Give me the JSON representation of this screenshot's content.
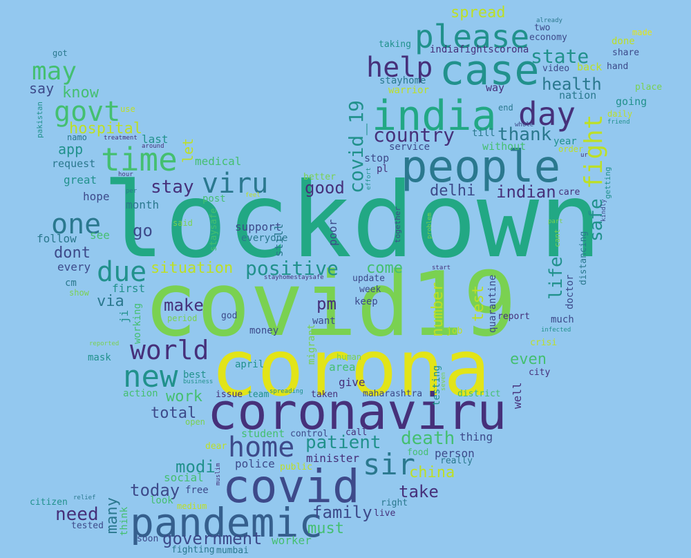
{
  "palette": {
    "background": "#93c8ef",
    "dark_purple": "#46307a",
    "indigo": "#3d4a8a",
    "slate_blue": "#355f8d",
    "steel": "#2a788e",
    "teal": "#21918c",
    "jade": "#22a884",
    "green": "#44bf70",
    "lime": "#7ad151",
    "light_lime": "#bddf26",
    "yellow": "#e2e418"
  },
  "words": [
    {
      "text": "lockdown",
      "color": "jade"
    },
    {
      "text": "covid19",
      "color": "lime"
    },
    {
      "text": "corona",
      "color": "yellow"
    },
    {
      "text": "coronaviru",
      "color": "dark_purple"
    },
    {
      "text": "pandemic",
      "color": "slate_blue"
    },
    {
      "text": "covid",
      "color": "indigo"
    },
    {
      "text": "people",
      "color": "steel"
    },
    {
      "text": "india",
      "color": "jade"
    },
    {
      "text": "case",
      "color": "teal"
    },
    {
      "text": "please",
      "color": "teal"
    },
    {
      "text": "home",
      "color": "indigo"
    },
    {
      "text": "new",
      "color": "teal"
    },
    {
      "text": "time",
      "color": "green"
    },
    {
      "text": "day",
      "color": "dark_purple"
    },
    {
      "text": "help",
      "color": "dark_purple"
    },
    {
      "text": "world",
      "color": "dark_purple"
    },
    {
      "text": "viru",
      "color": "steel"
    },
    {
      "text": "one",
      "color": "steel"
    },
    {
      "text": "sir",
      "color": "steel"
    },
    {
      "text": "due",
      "color": "teal"
    },
    {
      "text": "govt",
      "color": "green"
    },
    {
      "text": "may",
      "color": "green"
    },
    {
      "text": "fight",
      "color": "light_lime"
    },
    {
      "text": "country",
      "color": "dark_purple"
    },
    {
      "text": "covid_19",
      "color": "teal"
    },
    {
      "text": "positive",
      "color": "teal"
    },
    {
      "text": "stay",
      "color": "dark_purple"
    },
    {
      "text": "hospital",
      "color": "light_lime"
    },
    {
      "text": "state",
      "color": "teal"
    },
    {
      "text": "health",
      "color": "steel"
    },
    {
      "text": "thank",
      "color": "steel"
    },
    {
      "text": "patient",
      "color": "teal"
    },
    {
      "text": "good",
      "color": "dark_purple"
    },
    {
      "text": "delhi",
      "color": "indigo"
    },
    {
      "text": "indian",
      "color": "dark_purple"
    },
    {
      "text": "safe",
      "color": "teal"
    },
    {
      "text": "situation",
      "color": "light_lime"
    },
    {
      "text": "death",
      "color": "green"
    },
    {
      "text": "take",
      "color": "dark_purple"
    },
    {
      "text": "need",
      "color": "dark_purple"
    },
    {
      "text": "family",
      "color": "indigo"
    },
    {
      "text": "today",
      "color": "indigo"
    },
    {
      "text": "government",
      "color": "indigo"
    },
    {
      "text": "modi",
      "color": "teal"
    },
    {
      "text": "make",
      "color": "dark_purple"
    },
    {
      "text": "pm",
      "color": "dark_purple"
    },
    {
      "text": "life",
      "color": "teal"
    },
    {
      "text": "come",
      "color": "green"
    },
    {
      "text": "even",
      "color": "green"
    },
    {
      "text": "china",
      "color": "light_lime"
    },
    {
      "text": "total",
      "color": "indigo"
    },
    {
      "text": "work",
      "color": "green"
    },
    {
      "text": "number",
      "color": "light_lime"
    },
    {
      "text": "test",
      "color": "light_lime"
    },
    {
      "text": "spread",
      "color": "light_lime"
    },
    {
      "text": "go",
      "color": "indigo"
    },
    {
      "text": "dont",
      "color": "indigo"
    },
    {
      "text": "via",
      "color": "steel"
    },
    {
      "text": "must",
      "color": "green"
    },
    {
      "text": "many",
      "color": "steel"
    },
    {
      "text": "app",
      "color": "teal"
    },
    {
      "text": "know",
      "color": "green"
    },
    {
      "text": "say",
      "color": "indigo"
    },
    {
      "text": "let",
      "color": "light_lime"
    },
    {
      "text": "last",
      "color": "teal"
    },
    {
      "text": "medical",
      "color": "green"
    },
    {
      "text": "request",
      "color": "steel"
    },
    {
      "text": "great",
      "color": "teal"
    },
    {
      "text": "hope",
      "color": "indigo"
    },
    {
      "text": "month",
      "color": "steel"
    },
    {
      "text": "follow",
      "color": "steel"
    },
    {
      "text": "see",
      "color": "green"
    },
    {
      "text": "every",
      "color": "indigo"
    },
    {
      "text": "cm",
      "color": "steel"
    },
    {
      "text": "first",
      "color": "teal"
    },
    {
      "text": "show",
      "color": "lime"
    },
    {
      "text": "mask",
      "color": "teal"
    },
    {
      "text": "action",
      "color": "green"
    },
    {
      "text": "best",
      "color": "teal"
    },
    {
      "text": "support",
      "color": "indigo"
    },
    {
      "text": "everyone",
      "color": "steel"
    },
    {
      "text": "still",
      "color": "steel"
    },
    {
      "text": "poor",
      "color": "indigo"
    },
    {
      "text": "post",
      "color": "green"
    },
    {
      "text": "staysafe",
      "color": "green"
    },
    {
      "text": "said",
      "color": "lime"
    },
    {
      "text": "god",
      "color": "indigo"
    },
    {
      "text": "money",
      "color": "indigo"
    },
    {
      "text": "period",
      "color": "lime"
    },
    {
      "text": "working",
      "color": "green"
    },
    {
      "text": "ji",
      "color": "teal"
    },
    {
      "text": "keep",
      "color": "indigo"
    },
    {
      "text": "want",
      "color": "indigo"
    },
    {
      "text": "week",
      "color": "indigo"
    },
    {
      "text": "update",
      "color": "indigo"
    },
    {
      "text": "stayhomestaysafe",
      "color": "dark_purple"
    },
    {
      "text": "migrant",
      "color": "lime"
    },
    {
      "text": "human",
      "color": "lime"
    },
    {
      "text": "area",
      "color": "green"
    },
    {
      "text": "give",
      "color": "dark_purple"
    },
    {
      "text": "taken",
      "color": "dark_purple"
    },
    {
      "text": "team",
      "color": "teal"
    },
    {
      "text": "issue",
      "color": "dark_purple"
    },
    {
      "text": "april",
      "color": "teal"
    },
    {
      "text": "spreading",
      "color": "teal"
    },
    {
      "text": "business",
      "color": "teal"
    },
    {
      "text": "open",
      "color": "lime"
    },
    {
      "text": "student",
      "color": "green"
    },
    {
      "text": "control",
      "color": "indigo"
    },
    {
      "text": "call",
      "color": "dark_purple"
    },
    {
      "text": "minister",
      "color": "dark_purple"
    },
    {
      "text": "police",
      "color": "indigo"
    },
    {
      "text": "public",
      "color": "light_lime"
    },
    {
      "text": "social",
      "color": "green"
    },
    {
      "text": "free",
      "color": "indigo"
    },
    {
      "text": "look",
      "color": "green"
    },
    {
      "text": "medium",
      "color": "light_lime"
    },
    {
      "text": "think",
      "color": "green"
    },
    {
      "text": "muslim",
      "color": "dark_purple"
    },
    {
      "text": "dear",
      "color": "light_lime"
    },
    {
      "text": "soon",
      "color": "indigo"
    },
    {
      "text": "fighting",
      "color": "steel"
    },
    {
      "text": "mumbai",
      "color": "steel"
    },
    {
      "text": "worker",
      "color": "green"
    },
    {
      "text": "live",
      "color": "dark_purple"
    },
    {
      "text": "right",
      "color": "steel"
    },
    {
      "text": "citizen",
      "color": "teal"
    },
    {
      "text": "relief",
      "color": "steel"
    },
    {
      "text": "tested",
      "color": "indigo"
    },
    {
      "text": "thing",
      "color": "indigo"
    },
    {
      "text": "person",
      "color": "indigo"
    },
    {
      "text": "really",
      "color": "steel"
    },
    {
      "text": "food",
      "color": "green"
    },
    {
      "text": "maharashtra",
      "color": "indigo"
    },
    {
      "text": "district",
      "color": "green"
    },
    {
      "text": "testing",
      "color": "teal"
    },
    {
      "text": "well",
      "color": "dark_purple"
    },
    {
      "text": "city",
      "color": "dark_purple"
    },
    {
      "text": "seven",
      "color": "lime"
    },
    {
      "text": "job",
      "color": "light_lime"
    },
    {
      "text": "report",
      "color": "dark_purple"
    },
    {
      "text": "quarantine",
      "color": "indigo"
    },
    {
      "text": "much",
      "color": "indigo"
    },
    {
      "text": "infected",
      "color": "teal"
    },
    {
      "text": "crisi",
      "color": "light_lime"
    },
    {
      "text": "doctor",
      "color": "indigo"
    },
    {
      "text": "distancing",
      "color": "steel"
    },
    {
      "text": "cant",
      "color": "lime"
    },
    {
      "text": "part",
      "color": "lime"
    },
    {
      "text": "kindly",
      "color": "indigo"
    },
    {
      "text": "care",
      "color": "dark_purple"
    },
    {
      "text": "getting",
      "color": "teal"
    },
    {
      "text": "order",
      "color": "light_lime"
    },
    {
      "text": "ur",
      "color": "dark_purple"
    },
    {
      "text": "year",
      "color": "teal"
    },
    {
      "text": "without",
      "color": "green"
    },
    {
      "text": "till",
      "color": "steel"
    },
    {
      "text": "service",
      "color": "indigo"
    },
    {
      "text": "pl",
      "color": "dark_purple"
    },
    {
      "text": "stop",
      "color": "indigo"
    },
    {
      "text": "better",
      "color": "lime"
    },
    {
      "text": "effort",
      "color": "teal"
    },
    {
      "text": "together",
      "color": "indigo"
    },
    {
      "text": "problem",
      "color": "lime"
    },
    {
      "text": "start",
      "color": "dark_purple"
    },
    {
      "text": "stayhome",
      "color": "steel"
    },
    {
      "text": "warrior",
      "color": "light_lime"
    },
    {
      "text": "way",
      "color": "dark_purple"
    },
    {
      "text": "end",
      "color": "steel"
    },
    {
      "text": "whole",
      "color": "indigo"
    },
    {
      "text": "nation",
      "color": "steel"
    },
    {
      "text": "going",
      "color": "teal"
    },
    {
      "text": "daily",
      "color": "light_lime"
    },
    {
      "text": "friend",
      "color": "teal"
    },
    {
      "text": "place",
      "color": "lime"
    },
    {
      "text": "hand",
      "color": "indigo"
    },
    {
      "text": "back",
      "color": "light_lime"
    },
    {
      "text": "video",
      "color": "indigo"
    },
    {
      "text": "share",
      "color": "indigo"
    },
    {
      "text": "done",
      "color": "light_lime"
    },
    {
      "text": "made",
      "color": "yellow"
    },
    {
      "text": "economy",
      "color": "indigo"
    },
    {
      "text": "two",
      "color": "indigo"
    },
    {
      "text": "already",
      "color": "steel"
    },
    {
      "text": "indiafightscorona",
      "color": "dark_purple"
    },
    {
      "text": "taking",
      "color": "teal"
    },
    {
      "text": "got",
      "color": "steel"
    },
    {
      "text": "pakistan",
      "color": "teal"
    },
    {
      "text": "use",
      "color": "light_lime"
    },
    {
      "text": "namo",
      "color": "steel"
    },
    {
      "text": "treatment",
      "color": "dark_purple"
    },
    {
      "text": "around",
      "color": "dark_purple"
    },
    {
      "text": "hour",
      "color": "dark_purple"
    },
    {
      "text": "per",
      "color": "steel"
    },
    {
      "text": "feel",
      "color": "light_lime"
    },
    {
      "text": "reported",
      "color": "lime"
    }
  ]
}
